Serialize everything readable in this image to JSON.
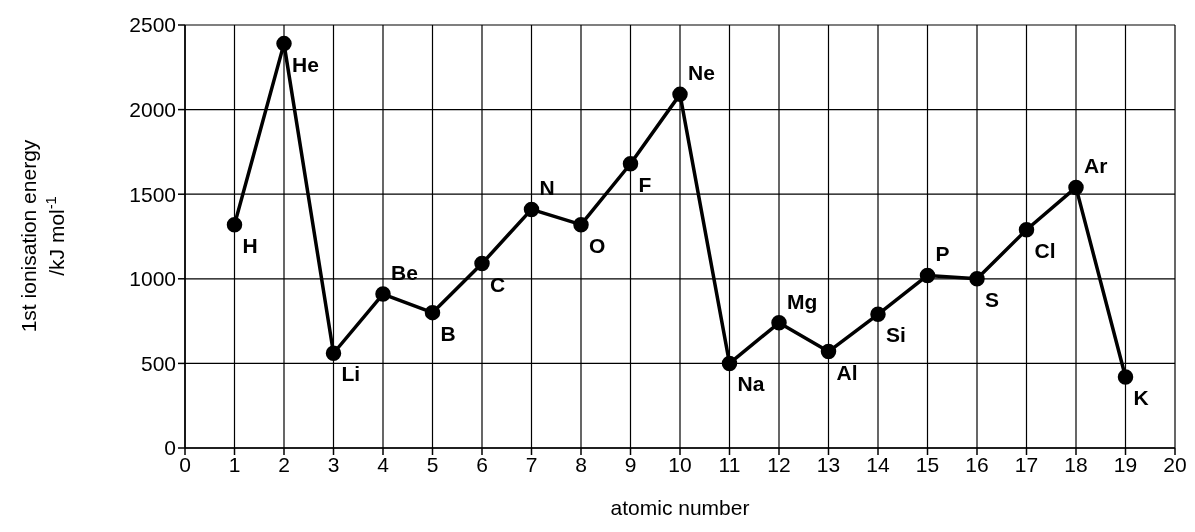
{
  "chart_data": {
    "type": "line",
    "xlabel": "atomic number",
    "ylabel": "1st ionisation energy\n/kJ mol$^{-1}$",
    "x": [
      1,
      2,
      3,
      4,
      5,
      6,
      7,
      8,
      9,
      10,
      11,
      12,
      13,
      14,
      15,
      16,
      17,
      18,
      19
    ],
    "series": [
      {
        "color": "#000000",
        "values": [
          1320,
          2390,
          560,
          910,
          800,
          1090,
          1410,
          1320,
          1680,
          2090,
          500,
          740,
          570,
          790,
          1020,
          1000,
          1290,
          1540,
          420
        ]
      }
    ],
    "xlim": [
      0,
      20
    ],
    "xticks": [
      0,
      1,
      2,
      3,
      4,
      5,
      6,
      7,
      8,
      9,
      10,
      11,
      12,
      13,
      14,
      15,
      16,
      17,
      18,
      19,
      20
    ],
    "ylim": [
      0,
      2500
    ],
    "yticks": [
      0,
      500,
      1000,
      1500,
      2000,
      2500
    ],
    "grid": true,
    "marker": "circle",
    "line_style": "solid",
    "legend": false,
    "annotations": [
      {
        "text": "H",
        "x": 1,
        "y": 1320
      },
      {
        "text": "He",
        "x": 2,
        "y": 2390
      },
      {
        "text": "Li",
        "x": 3,
        "y": 560
      },
      {
        "text": "Be",
        "x": 4,
        "y": 910
      },
      {
        "text": "B",
        "x": 5,
        "y": 800
      },
      {
        "text": "C",
        "x": 6,
        "y": 1090
      },
      {
        "text": "N",
        "x": 7,
        "y": 1410
      },
      {
        "text": "O",
        "x": 8,
        "y": 1320
      },
      {
        "text": "F",
        "x": 9,
        "y": 1680
      },
      {
        "text": "Ne",
        "x": 10,
        "y": 2090
      },
      {
        "text": "Na",
        "x": 11,
        "y": 500
      },
      {
        "text": "Mg",
        "x": 12,
        "y": 740
      },
      {
        "text": "Al",
        "x": 13,
        "y": 570
      },
      {
        "text": "Si",
        "x": 14,
        "y": 790
      },
      {
        "text": "P",
        "x": 15,
        "y": 1020
      },
      {
        "text": "S",
        "x": 16,
        "y": 1000
      },
      {
        "text": "Cl",
        "x": 17,
        "y": 1290
      },
      {
        "text": "Ar",
        "x": 18,
        "y": 1540
      },
      {
        "text": "K",
        "x": 19,
        "y": 420
      }
    ]
  }
}
